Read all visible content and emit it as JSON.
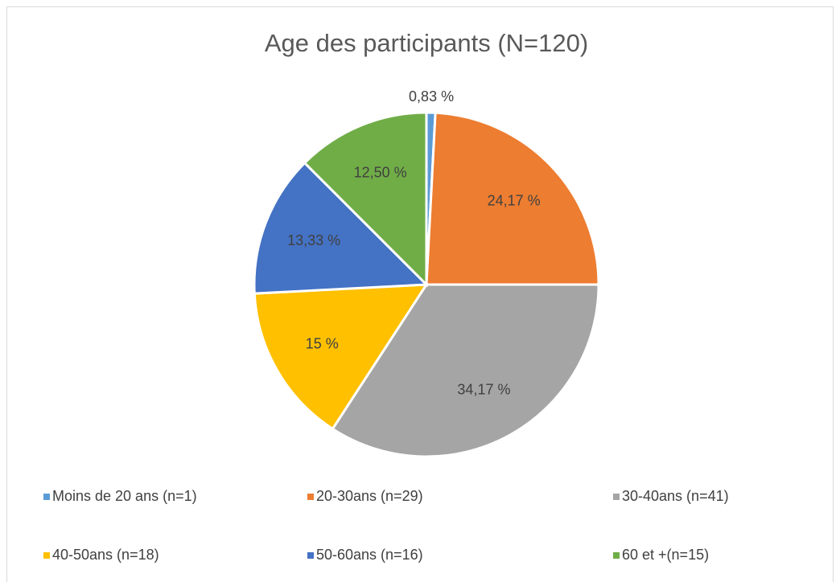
{
  "chart_data": {
    "type": "pie",
    "title": "Age des participants (N=120)",
    "categories": [
      "Moins de 20 ans (n=1)",
      "20-30ans (n=29)",
      "30-40ans (n=41)",
      "40-50ans (n=18)",
      "50-60ans (n=16)",
      "60 et +(n=15)"
    ],
    "values": [
      0.83,
      24.17,
      34.17,
      15,
      13.33,
      12.5
    ],
    "value_labels": [
      "0,83 %",
      "24,17 %",
      "34,17 %",
      "15 %",
      "13,33 %",
      "12,50 %"
    ],
    "colors": [
      "#5b9bd5",
      "#ed7d31",
      "#a5a5a5",
      "#ffc000",
      "#4472c4",
      "#70ad47"
    ],
    "legend": "bottom"
  }
}
